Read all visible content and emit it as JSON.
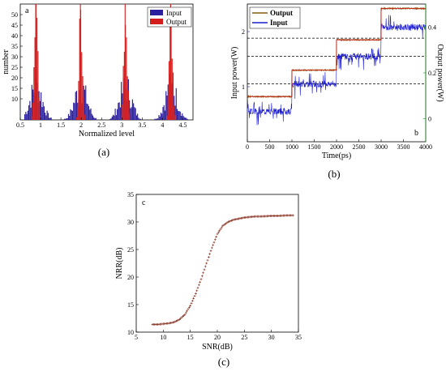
{
  "chart_data": [
    {
      "type": "histogram",
      "panel_letter": "a",
      "caption": "(a)",
      "xlabel": "Normalized level",
      "ylabel": "number",
      "xlim": [
        0.5,
        4.75
      ],
      "ylim": [
        0,
        55
      ],
      "xticks": [
        "0.5",
        "1",
        "1.5",
        "2",
        "2.5",
        "3",
        "3.5",
        "4",
        "4.5"
      ],
      "yticks": [
        "10",
        "15",
        "20",
        "25",
        "30",
        "35",
        "40",
        "45",
        "50"
      ],
      "legend": {
        "position": "top-right",
        "entries": [
          "Input",
          "Output"
        ]
      },
      "series": [
        {
          "name": "Input",
          "color": "#2a1f9c",
          "peak_centers": [
            0.88,
            1.98,
            3.08,
            4.2
          ],
          "peak_spread": 0.15,
          "peak_height": 16
        },
        {
          "name": "Output",
          "color": "#d41e1e",
          "peak_centers": [
            0.88,
            1.98,
            3.08,
            4.2
          ],
          "peak_spread": 0.04,
          "peak_height": 56
        }
      ]
    },
    {
      "type": "line",
      "panel_letter": "b",
      "caption": "(b)",
      "xlabel": "Time(ps)",
      "ylabel": "Input power(W)",
      "y2label": "Output power(W)",
      "xlim": [
        0,
        4000
      ],
      "ylim": [
        0,
        2.5
      ],
      "y2lim": [
        -0.1,
        0.5
      ],
      "xticks": [
        "0",
        "500",
        "1000",
        "1500",
        "2000",
        "2500",
        "3000",
        "3500",
        "4000"
      ],
      "yticks": [
        "1",
        "2"
      ],
      "y2ticks": [
        "0",
        "0.2",
        "0.4"
      ],
      "legend": {
        "position": "top-left",
        "entries": [
          "Output",
          "Input"
        ]
      },
      "thresholds_w": [
        1.05,
        1.55,
        1.88
      ],
      "series": [
        {
          "name": "Output",
          "color": "#8a5a14",
          "x": [
            0,
            1000,
            1000,
            2000,
            2000,
            3000,
            3000,
            4000
          ],
          "y": [
            0.82,
            0.82,
            1.3,
            1.3,
            1.85,
            1.85,
            2.42,
            2.42
          ]
        },
        {
          "name": "Input",
          "color": "#1a1ad0",
          "levels": [
            0.55,
            1.05,
            1.55,
            2.08
          ],
          "noise": 0.06
        }
      ]
    },
    {
      "type": "scatter",
      "panel_letter": "c",
      "caption": "(c)",
      "xlabel": "SNR(dB)",
      "ylabel": "NRR(dB)",
      "xlim": [
        5,
        35
      ],
      "ylim": [
        10,
        35
      ],
      "xticks": [
        "5",
        "10",
        "15",
        "20",
        "25",
        "30",
        "35"
      ],
      "yticks": [
        "10",
        "15",
        "20",
        "25",
        "30",
        "35"
      ],
      "series": [
        {
          "name": "",
          "color": "#8b3a2a",
          "x": [
            8,
            9,
            10,
            11,
            12,
            13,
            14,
            15,
            16,
            17,
            18,
            19,
            20,
            21,
            22,
            23,
            24,
            25,
            26,
            27,
            28,
            29,
            30,
            31,
            32,
            33,
            34
          ],
          "y": [
            11.4,
            11.4,
            11.5,
            11.6,
            11.8,
            12.3,
            13.2,
            14.8,
            17.0,
            19.6,
            22.5,
            25.3,
            27.8,
            29.3,
            30.0,
            30.4,
            30.6,
            30.8,
            30.9,
            31.0,
            31.0,
            31.05,
            31.1,
            31.1,
            31.15,
            31.2,
            31.2
          ]
        }
      ]
    }
  ]
}
